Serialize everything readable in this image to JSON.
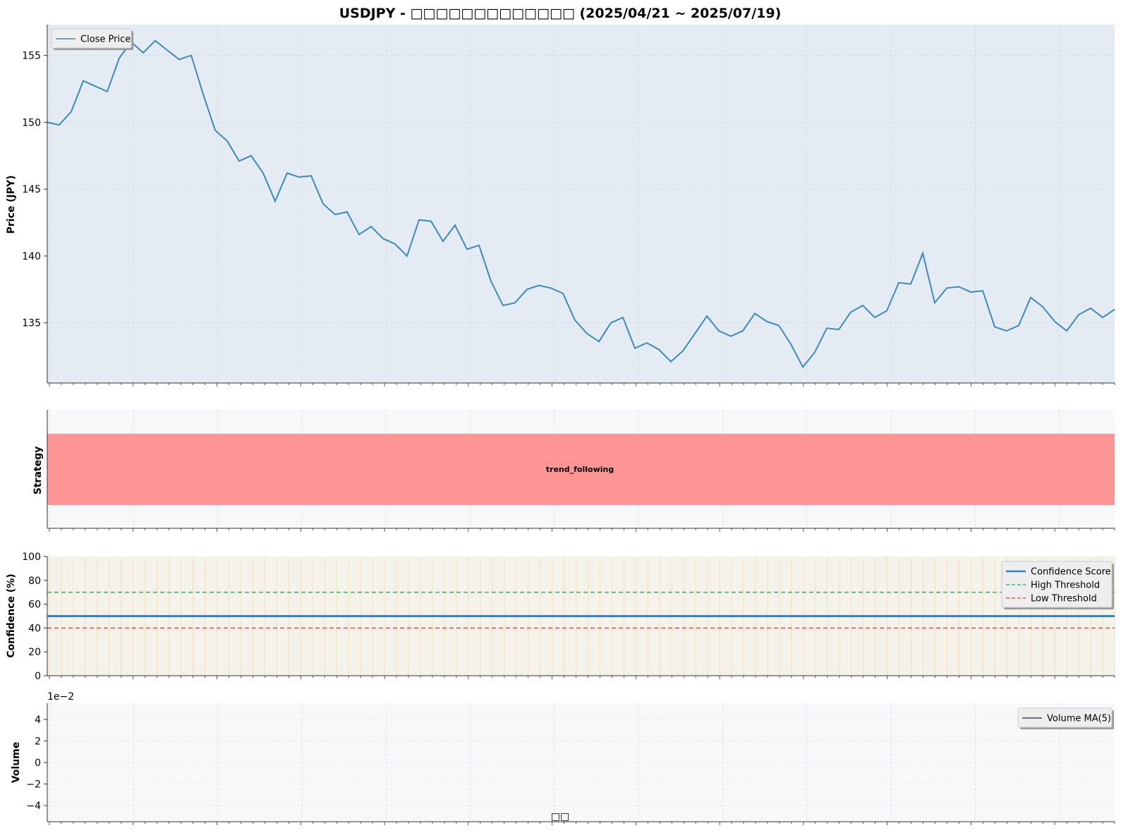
{
  "figure": {
    "title": "USDJPY - □□□□□□□□□□□□□ (2025/04/21 ~ 2025/07/19)"
  },
  "chart_data": [
    {
      "type": "line",
      "ylabel": "Price (JPY)",
      "ylim": [
        130.5,
        157.3
      ],
      "yticks": [
        135,
        140,
        145,
        150,
        155
      ],
      "legend_position": "top-left",
      "series": [
        {
          "name": "Close Price",
          "color": "#3a8bc0",
          "values": [
            150.0,
            149.8,
            150.8,
            153.1,
            152.7,
            152.3,
            154.8,
            156.0,
            155.2,
            156.1,
            155.4,
            154.7,
            155.0,
            152.1,
            149.4,
            148.6,
            147.1,
            147.5,
            146.2,
            144.1,
            146.2,
            145.9,
            146.0,
            143.9,
            143.1,
            143.3,
            141.6,
            142.2,
            141.3,
            140.9,
            140.0,
            142.7,
            142.6,
            141.1,
            142.3,
            140.5,
            140.8,
            138.1,
            136.3,
            136.5,
            137.5,
            137.8,
            137.6,
            137.2,
            135.2,
            134.2,
            133.6,
            135.0,
            135.4,
            133.1,
            133.5,
            133.0,
            132.1,
            132.9,
            134.2,
            135.5,
            134.4,
            134.0,
            134.4,
            135.7,
            135.1,
            134.8,
            133.4,
            131.7,
            132.8,
            134.6,
            134.5,
            135.8,
            136.3,
            135.4,
            135.9,
            138.0,
            137.9,
            140.2,
            136.5,
            137.6,
            137.7,
            137.3,
            137.4,
            134.7,
            134.4,
            134.8,
            136.9,
            136.2,
            135.1,
            134.4,
            135.6,
            136.1,
            135.4,
            136.0
          ]
        }
      ],
      "grid": true
    },
    {
      "type": "bar",
      "ylabel": "Strategy",
      "strategy_label": "trend_following",
      "band_color": "#fc9594",
      "grid": true
    },
    {
      "type": "line",
      "ylabel": "Confidence (%)",
      "ylim": [
        0,
        100
      ],
      "yticks": [
        0,
        20,
        40,
        60,
        80,
        100
      ],
      "legend_position": "top-right",
      "series": [
        {
          "name": "Confidence Score",
          "color": "#2e86c8",
          "values": [
            50
          ]
        },
        {
          "name": "High Threshold",
          "color": "#3fb36b",
          "values": [
            70
          ]
        },
        {
          "name": "Low Threshold",
          "color": "#e2574c",
          "values": [
            40
          ]
        }
      ],
      "grid": true
    },
    {
      "type": "line",
      "ylabel": "Volume",
      "offset_text": "1e−2",
      "xlabel": "□□",
      "ylim": [
        -5.5,
        5.5
      ],
      "yticks": [
        -4,
        -2,
        0,
        2,
        4
      ],
      "ytick_labels": [
        "−4",
        "−2",
        "0",
        "2",
        "4"
      ],
      "legend_position": "top-right",
      "series": [
        {
          "name": "Volume MA(5)",
          "color": "#34495e",
          "values": []
        }
      ],
      "grid": true
    }
  ]
}
